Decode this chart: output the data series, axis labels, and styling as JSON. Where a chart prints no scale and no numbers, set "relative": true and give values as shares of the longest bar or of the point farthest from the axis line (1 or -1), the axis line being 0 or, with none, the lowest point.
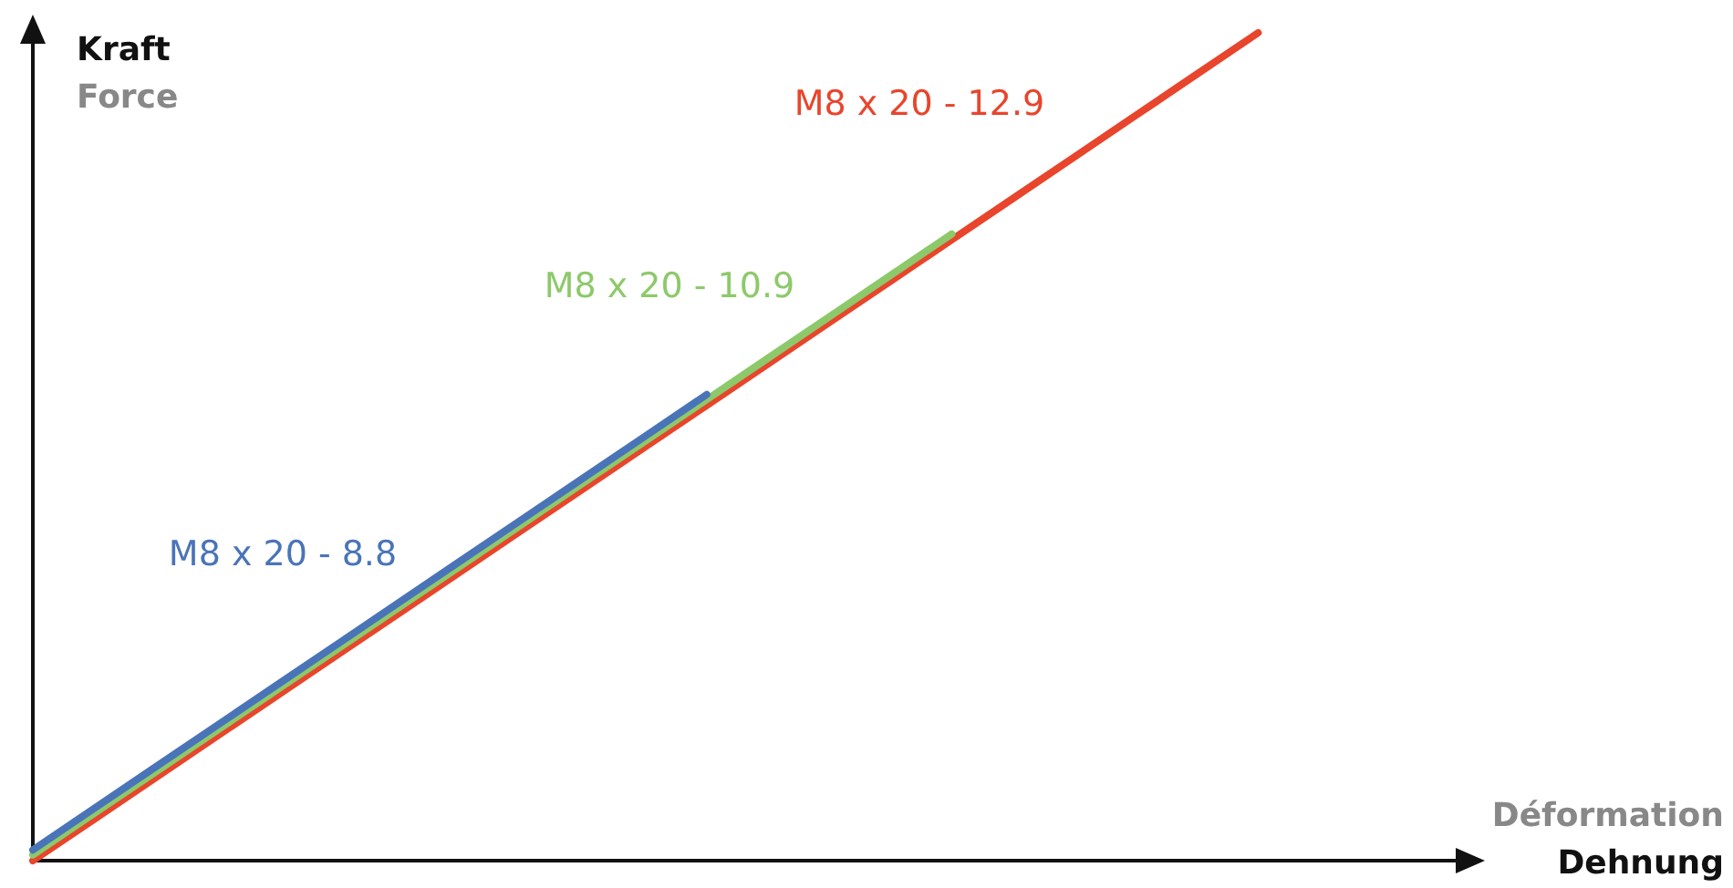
{
  "chart_data": {
    "type": "line",
    "relative": true,
    "xlabel": "Déformation\nDehnung",
    "ylabel": "Kraft\nForce",
    "line_style": "solid",
    "categories": [
      null,
      null,
      null,
      null,
      null,
      null,
      null,
      null,
      null,
      null,
      null,
      null,
      null,
      null,
      null,
      null,
      null,
      null,
      null,
      null,
      null,
      null,
      null,
      null,
      null
    ],
    "series": [
      {
        "name": "M8 x 20 - 8.8",
        "color": "#4a74b8",
        "values": [
          0.013,
          0.063,
          0.113,
          0.163,
          0.213,
          0.263,
          0.313,
          0.363,
          0.413,
          0.463,
          0.513,
          0.563,
          null,
          null,
          null,
          null,
          null,
          null,
          null,
          null,
          null,
          null,
          null,
          null,
          null
        ]
      },
      {
        "name": "M8 x 20 - 10.9",
        "color": "#8dc96a",
        "values": [
          0.007,
          0.057,
          0.107,
          0.157,
          0.207,
          0.257,
          0.307,
          0.357,
          0.407,
          0.457,
          0.507,
          0.557,
          0.607,
          0.657,
          0.707,
          0.757,
          null,
          null,
          null,
          null,
          null,
          null,
          null,
          null,
          null
        ]
      },
      {
        "name": "M8 x 20 - 12.9",
        "color": "#e8452c",
        "values": [
          0,
          0.05,
          0.1,
          0.15,
          0.2,
          0.25,
          0.3,
          0.35,
          0.4,
          0.45,
          0.5,
          0.55,
          0.6,
          0.65,
          0.7,
          0.75,
          0.8,
          0.85,
          0.9,
          0.95,
          1,
          null,
          null,
          null,
          null
        ]
      }
    ]
  }
}
